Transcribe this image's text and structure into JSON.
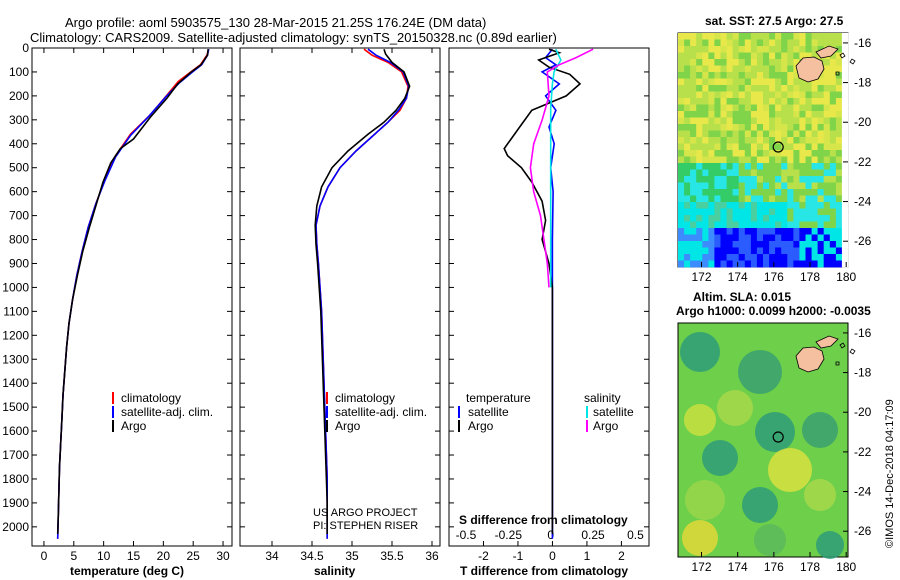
{
  "title_line1": "Argo profile: aoml 5903575_130 28-Mar-2015 21.25S 176.24E (DM data)",
  "title_line2": "Climatology: CARS2009. Satellite-adjusted climatology: synTS_20150328.nc (0.89d earlier)",
  "colors": {
    "climatology": "#ff0000",
    "satellite": "#0000ff",
    "argo": "#000000",
    "sat_salinity": "#00e5e5",
    "argo_salinity": "#ff00ff"
  },
  "credit": {
    "line1": "US ARGO PROJECT",
    "line2": "PI: STEPHEN RISER"
  },
  "stamp": "©IMOS 14-Dec-2018 04:17:09",
  "legends": {
    "temperature": [
      "climatology",
      "satellite-adj. clim.",
      "Argo"
    ],
    "salinity": [
      "climatology",
      "satellite-adj. clim.",
      "Argo"
    ],
    "diff_header_t": "temperature",
    "diff_header_s": "salinity",
    "diff_t": [
      "satellite",
      "Argo"
    ],
    "diff_s": [
      "satellite",
      "Argo"
    ]
  },
  "maps": {
    "sst_title": "sat. SST: 27.5 Argo: 27.5",
    "sla_title1": "Altim. SLA: 0.015",
    "sla_title2": "Argo h1000: 0.0099 h2000: -0.0035",
    "lon_ticks": [
      172,
      174,
      176,
      178,
      180
    ],
    "lat_ticks": [
      -16,
      -18,
      -20,
      -22,
      -24,
      -26
    ],
    "lon_range": [
      170.7,
      180.1
    ],
    "lat_range": [
      -27.3,
      -15.5
    ],
    "profile_lon": 176.24,
    "profile_lat": -21.25
  },
  "chart_data": [
    {
      "type": "line",
      "id": "temperature",
      "xlabel": "temperature (deg C)",
      "ylabel": "",
      "xlim": [
        -2,
        31.5
      ],
      "ylim": [
        0,
        2080
      ],
      "y_inverted": true,
      "xticks": [
        0,
        5,
        10,
        15,
        20,
        25,
        30
      ],
      "yticks": [
        0,
        100,
        200,
        300,
        400,
        500,
        600,
        700,
        800,
        900,
        1000,
        1100,
        1200,
        1300,
        1400,
        1500,
        1600,
        1700,
        1800,
        1900,
        2000
      ],
      "series": [
        {
          "name": "climatology",
          "color": "#ff0000",
          "points": [
            [
              27.6,
              5
            ],
            [
              27.3,
              30
            ],
            [
              26.2,
              70
            ],
            [
              24.6,
              100
            ],
            [
              22.5,
              140
            ],
            [
              20.5,
              200
            ],
            [
              17.8,
              280
            ],
            [
              14.5,
              360
            ],
            [
              12.0,
              450
            ],
            [
              10.2,
              550
            ],
            [
              8.7,
              650
            ],
            [
              7.4,
              750
            ],
            [
              6.4,
              850
            ],
            [
              5.5,
              950
            ],
            [
              4.8,
              1050
            ],
            [
              4.2,
              1150
            ],
            [
              3.8,
              1250
            ],
            [
              3.5,
              1350
            ],
            [
              3.2,
              1450
            ],
            [
              3.0,
              1550
            ],
            [
              2.8,
              1650
            ],
            [
              2.6,
              1750
            ],
            [
              2.5,
              1850
            ],
            [
              2.4,
              1950
            ],
            [
              2.3,
              2050
            ]
          ]
        },
        {
          "name": "satellite-adj. clim.",
          "color": "#0000ff",
          "points": [
            [
              27.6,
              5
            ],
            [
              27.4,
              30
            ],
            [
              26.4,
              70
            ],
            [
              24.9,
              100
            ],
            [
              22.7,
              145
            ],
            [
              20.4,
              205
            ],
            [
              17.6,
              285
            ],
            [
              14.5,
              365
            ],
            [
              12.0,
              455
            ],
            [
              10.2,
              555
            ],
            [
              8.7,
              650
            ],
            [
              7.4,
              750
            ],
            [
              6.4,
              850
            ],
            [
              5.5,
              950
            ],
            [
              4.8,
              1050
            ],
            [
              4.2,
              1150
            ],
            [
              3.8,
              1250
            ],
            [
              3.5,
              1350
            ],
            [
              3.2,
              1450
            ],
            [
              3.0,
              1550
            ],
            [
              2.8,
              1650
            ],
            [
              2.6,
              1750
            ],
            [
              2.5,
              1850
            ],
            [
              2.4,
              1950
            ],
            [
              2.3,
              2050
            ]
          ]
        },
        {
          "name": "Argo",
          "color": "#000000",
          "points": [
            [
              27.5,
              5
            ],
            [
              27.4,
              30
            ],
            [
              26.3,
              70
            ],
            [
              24.7,
              100
            ],
            [
              22.4,
              150
            ],
            [
              20.6,
              210
            ],
            [
              17.8,
              290
            ],
            [
              15.0,
              380
            ],
            [
              12.8,
              420
            ],
            [
              11.2,
              480
            ],
            [
              9.9,
              560
            ],
            [
              8.8,
              650
            ],
            [
              7.6,
              750
            ],
            [
              6.5,
              850
            ],
            [
              5.6,
              950
            ],
            [
              4.8,
              1050
            ],
            [
              4.2,
              1150
            ],
            [
              3.8,
              1250
            ],
            [
              3.5,
              1350
            ],
            [
              3.2,
              1450
            ],
            [
              3.0,
              1550
            ],
            [
              2.8,
              1650
            ],
            [
              2.6,
              1750
            ],
            [
              2.5,
              1850
            ],
            [
              2.4,
              1950
            ],
            [
              2.3,
              2030
            ]
          ]
        }
      ]
    },
    {
      "type": "line",
      "id": "salinity",
      "xlabel": "salinity",
      "xlim": [
        33.6,
        36.1
      ],
      "ylim": [
        0,
        2080
      ],
      "y_inverted": true,
      "xticks": [
        34,
        34.5,
        35,
        35.5,
        36
      ],
      "series": [
        {
          "name": "climatology",
          "color": "#ff0000",
          "points": [
            [
              35.15,
              5
            ],
            [
              35.25,
              30
            ],
            [
              35.45,
              60
            ],
            [
              35.62,
              100
            ],
            [
              35.7,
              160
            ],
            [
              35.68,
              210
            ],
            [
              35.6,
              260
            ],
            [
              35.45,
              310
            ],
            [
              35.25,
              370
            ],
            [
              35.05,
              430
            ],
            [
              34.85,
              500
            ],
            [
              34.7,
              580
            ],
            [
              34.6,
              660
            ],
            [
              34.55,
              740
            ],
            [
              34.56,
              820
            ],
            [
              34.58,
              900
            ],
            [
              34.6,
              1000
            ],
            [
              34.62,
              1100
            ],
            [
              34.63,
              1200
            ],
            [
              34.64,
              1300
            ],
            [
              34.65,
              1400
            ],
            [
              34.66,
              1500
            ],
            [
              34.67,
              1600
            ],
            [
              34.68,
              1700
            ],
            [
              34.69,
              1800
            ],
            [
              34.69,
              1900
            ],
            [
              34.69,
              2050
            ]
          ]
        },
        {
          "name": "satellite-adj. clim.",
          "color": "#0000ff",
          "points": [
            [
              35.2,
              5
            ],
            [
              35.3,
              30
            ],
            [
              35.48,
              60
            ],
            [
              35.64,
              100
            ],
            [
              35.71,
              160
            ],
            [
              35.68,
              210
            ],
            [
              35.58,
              260
            ],
            [
              35.45,
              310
            ],
            [
              35.25,
              370
            ],
            [
              35.05,
              430
            ],
            [
              34.85,
              500
            ],
            [
              34.7,
              580
            ],
            [
              34.6,
              660
            ],
            [
              34.55,
              740
            ],
            [
              34.56,
              820
            ],
            [
              34.58,
              900
            ],
            [
              34.6,
              1000
            ],
            [
              34.62,
              1100
            ],
            [
              34.63,
              1200
            ],
            [
              34.64,
              1300
            ],
            [
              34.65,
              1400
            ],
            [
              34.66,
              1500
            ],
            [
              34.67,
              1600
            ],
            [
              34.68,
              1700
            ],
            [
              34.69,
              1800
            ],
            [
              34.69,
              1900
            ],
            [
              34.69,
              2050
            ]
          ]
        },
        {
          "name": "Argo",
          "color": "#000000",
          "points": [
            [
              35.4,
              5
            ],
            [
              35.42,
              25
            ],
            [
              35.5,
              60
            ],
            [
              35.65,
              100
            ],
            [
              35.72,
              160
            ],
            [
              35.66,
              210
            ],
            [
              35.55,
              260
            ],
            [
              35.4,
              310
            ],
            [
              35.2,
              360
            ],
            [
              34.95,
              430
            ],
            [
              34.75,
              500
            ],
            [
              34.62,
              580
            ],
            [
              34.56,
              660
            ],
            [
              34.54,
              740
            ],
            [
              34.55,
              820
            ],
            [
              34.57,
              900
            ],
            [
              34.59,
              1000
            ],
            [
              34.61,
              1100
            ],
            [
              34.62,
              1200
            ],
            [
              34.63,
              1300
            ],
            [
              34.64,
              1400
            ],
            [
              34.65,
              1500
            ],
            [
              34.66,
              1600
            ],
            [
              34.67,
              1700
            ],
            [
              34.68,
              1800
            ],
            [
              34.69,
              1900
            ],
            [
              34.69,
              2030
            ]
          ]
        }
      ]
    },
    {
      "type": "line",
      "id": "difference",
      "xlabel": "T difference from climatology",
      "xlabel_top": "S difference from climatology",
      "xlim": [
        -3,
        2.8
      ],
      "s_xlim": [
        -0.6,
        0.58
      ],
      "ylim": [
        0,
        2080
      ],
      "y_inverted": true,
      "xticks": [
        -2,
        -1,
        0,
        1,
        2
      ],
      "s_xticks": [
        -0.5,
        -0.25,
        0,
        0.25,
        0.5
      ],
      "series": [
        {
          "name": "temperature satellite",
          "color": "#0000ff",
          "points": [
            [
              0,
              5
            ],
            [
              -0.2,
              40
            ],
            [
              0.1,
              70
            ],
            [
              -0.3,
              100
            ],
            [
              0.2,
              150
            ],
            [
              -0.2,
              200
            ],
            [
              0.1,
              260
            ],
            [
              -0.1,
              330
            ],
            [
              0.05,
              400
            ],
            [
              -0.05,
              500
            ],
            [
              0.02,
              600
            ],
            [
              0,
              800
            ],
            [
              0,
              2050
            ]
          ]
        },
        {
          "name": "temperature Argo",
          "color": "#000000",
          "points": [
            [
              -0.1,
              5
            ],
            [
              0.2,
              20
            ],
            [
              -0.4,
              50
            ],
            [
              -0.1,
              80
            ],
            [
              0.5,
              110
            ],
            [
              0.8,
              150
            ],
            [
              0.4,
              200
            ],
            [
              -0.6,
              260
            ],
            [
              -0.9,
              320
            ],
            [
              -1.2,
              380
            ],
            [
              -1.4,
              420
            ],
            [
              -1.3,
              450
            ],
            [
              -0.9,
              500
            ],
            [
              -0.6,
              560
            ],
            [
              -0.3,
              640
            ],
            [
              -0.2,
              720
            ],
            [
              -0.3,
              800
            ],
            [
              -0.1,
              900
            ],
            [
              0,
              1000
            ],
            [
              0,
              1400
            ],
            [
              0,
              2030
            ]
          ]
        },
        {
          "name": "salinity satellite",
          "color": "#00e5e5",
          "points": [
            [
              0.03,
              5
            ],
            [
              0.06,
              50
            ],
            [
              0.02,
              100
            ],
            [
              0.01,
              150
            ],
            [
              0.0,
              250
            ],
            [
              0.0,
              400
            ],
            [
              0.0,
              600
            ],
            [
              0.0,
              800
            ],
            [
              0.0,
              1000
            ]
          ]
        },
        {
          "name": "salinity Argo",
          "color": "#ff00ff",
          "points": [
            [
              0.25,
              5
            ],
            [
              0.15,
              40
            ],
            [
              0.05,
              70
            ],
            [
              -0.02,
              100
            ],
            [
              -0.01,
              200
            ],
            [
              -0.05,
              300
            ],
            [
              -0.1,
              400
            ],
            [
              -0.12,
              500
            ],
            [
              -0.1,
              600
            ],
            [
              -0.06,
              700
            ],
            [
              -0.04,
              800
            ],
            [
              -0.02,
              900
            ],
            [
              -0.01,
              1000
            ]
          ]
        }
      ]
    }
  ]
}
